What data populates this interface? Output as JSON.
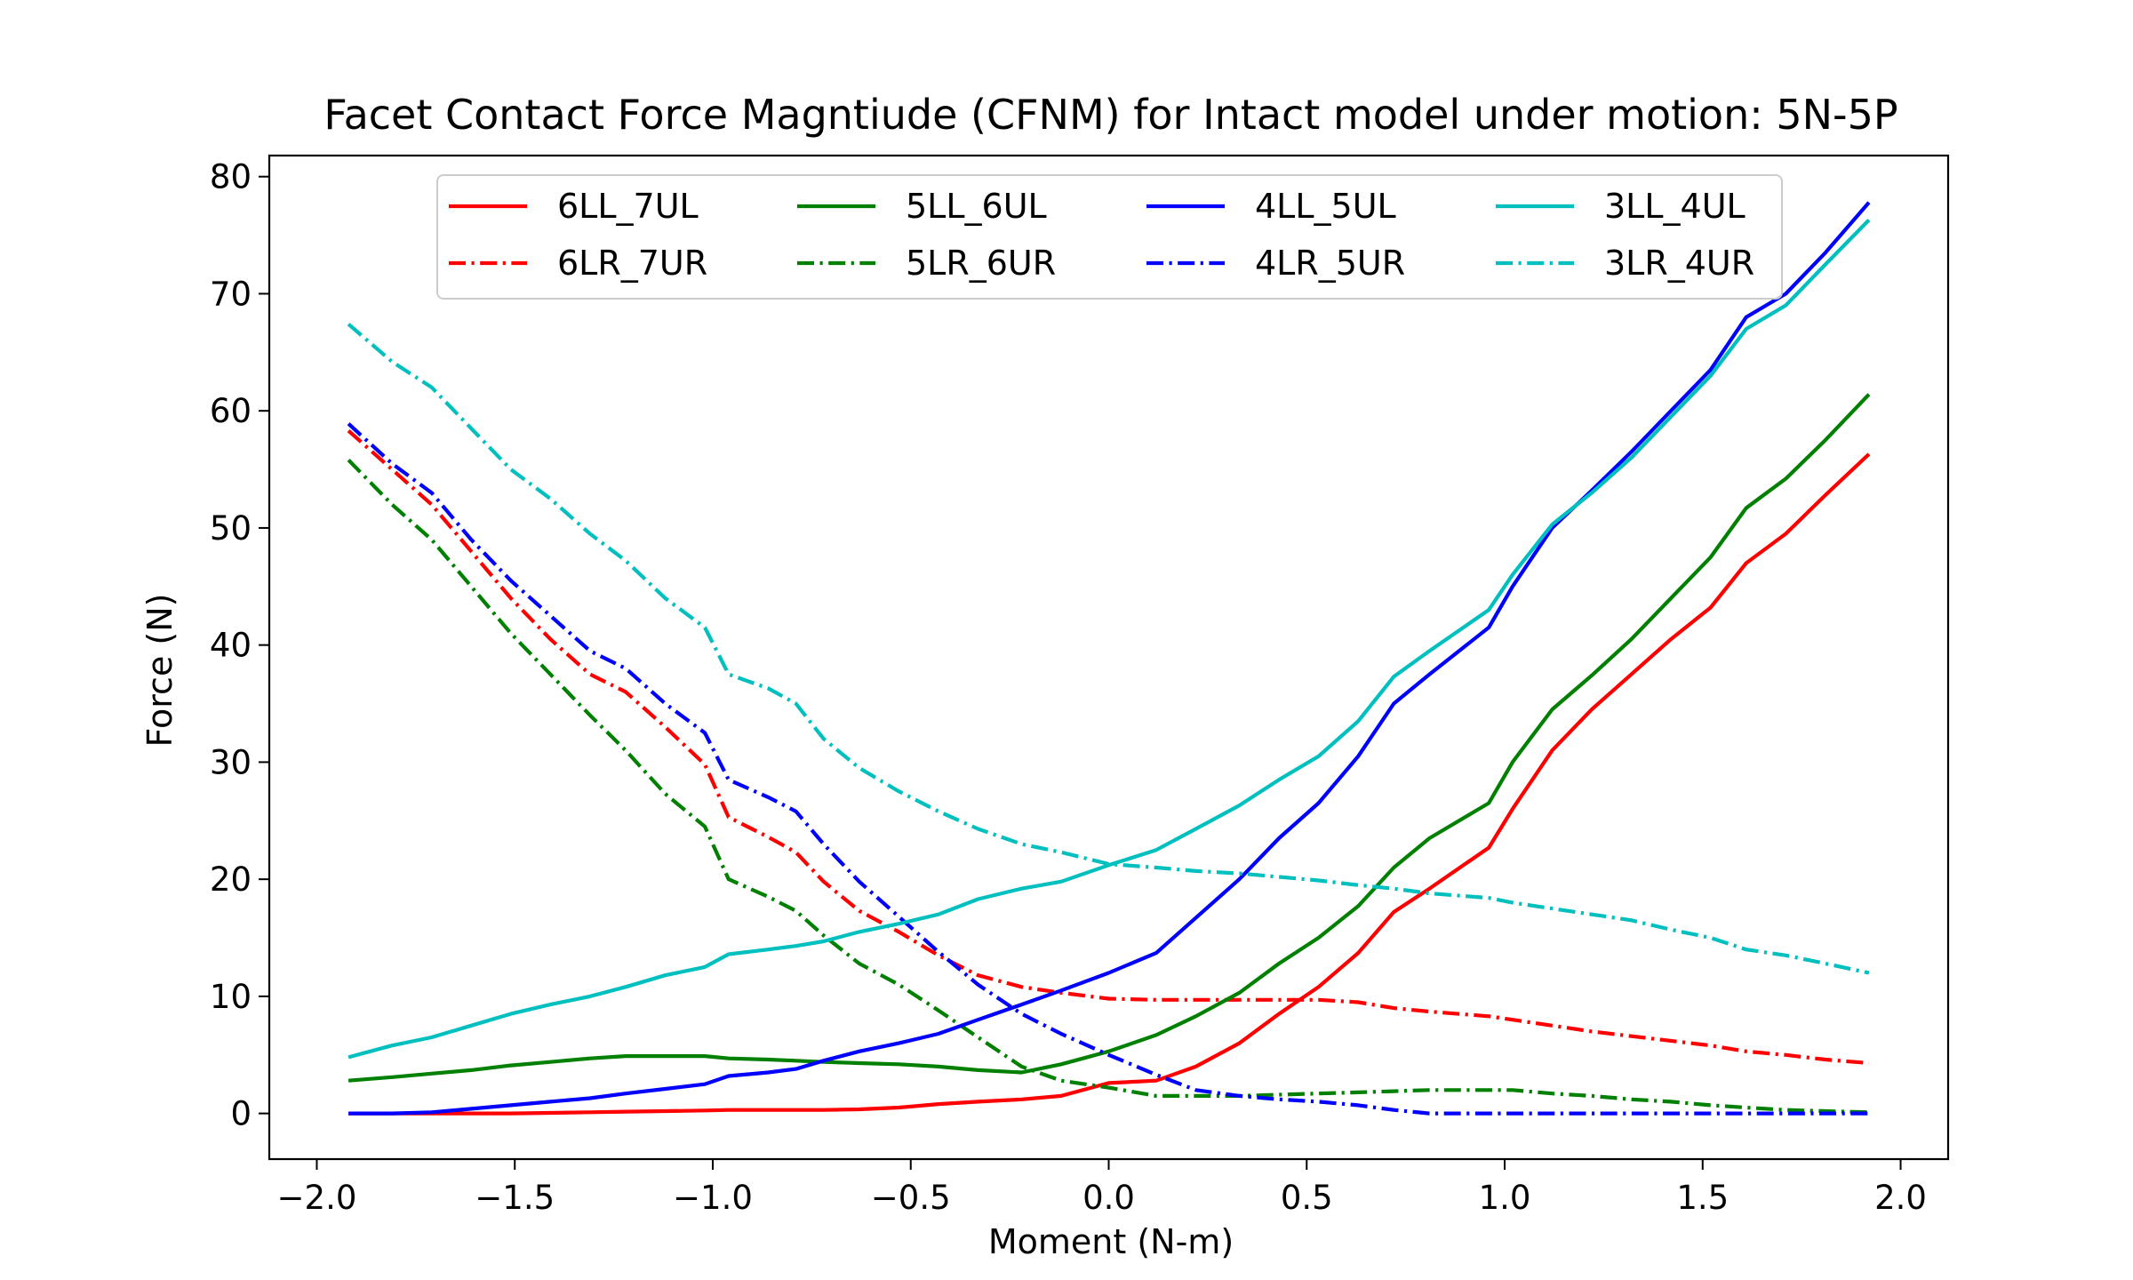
{
  "chart_data": {
    "type": "line",
    "title": "Facet Contact Force Magntiude (CFNM) for Intact model under motion: 5N-5P",
    "xlabel": "Moment (N-m)",
    "ylabel": "Force (N)",
    "xlim": [
      -2.12,
      2.12
    ],
    "ylim": [
      -3.9,
      81.8
    ],
    "xticks": [
      -2.0,
      -1.5,
      -1.0,
      -0.5,
      0.0,
      0.5,
      1.0,
      1.5,
      2.0
    ],
    "xtick_labels": [
      "−2.0",
      "−1.5",
      "−1.0",
      "−0.5",
      "0.0",
      "0.5",
      "1.0",
      "1.5",
      "2.0"
    ],
    "yticks": [
      0,
      10,
      20,
      30,
      40,
      50,
      60,
      70,
      80
    ],
    "ytick_labels": [
      "0",
      "10",
      "20",
      "30",
      "40",
      "50",
      "60",
      "70",
      "80"
    ],
    "grid": false,
    "legend_position": "upper center",
    "legend_columns": 4,
    "x": [
      -1.92,
      -1.81,
      -1.71,
      -1.61,
      -1.51,
      -1.41,
      -1.31,
      -1.22,
      -1.12,
      -1.02,
      -0.96,
      -0.86,
      -0.79,
      -0.72,
      -0.63,
      -0.53,
      -0.43,
      -0.33,
      -0.22,
      -0.12,
      0.0,
      0.12,
      0.22,
      0.33,
      0.43,
      0.53,
      0.63,
      0.72,
      0.81,
      0.96,
      1.02,
      1.12,
      1.22,
      1.32,
      1.42,
      1.52,
      1.61,
      1.71,
      1.81,
      1.92
    ],
    "series": [
      {
        "name": "6LL_7UL",
        "color": "#ff0000",
        "dash": "solid",
        "values": [
          0,
          0,
          0,
          0,
          0,
          0.05,
          0.1,
          0.15,
          0.2,
          0.25,
          0.3,
          0.3,
          0.3,
          0.3,
          0.35,
          0.5,
          0.8,
          1.0,
          1.2,
          1.5,
          2.6,
          2.8,
          4.0,
          6.0,
          8.5,
          10.8,
          13.7,
          17.2,
          19.2,
          22.7,
          26.0,
          31.0,
          34.5,
          37.5,
          40.5,
          43.2,
          47.0,
          49.5,
          52.8,
          56.3
        ]
      },
      {
        "name": "6LR_7UR",
        "color": "#ff0000",
        "dash": "dashdot",
        "values": [
          58.3,
          55.0,
          52.0,
          48.0,
          44.0,
          40.5,
          37.5,
          36.0,
          33.0,
          29.8,
          25.3,
          23.6,
          22.3,
          19.8,
          17.3,
          15.5,
          13.5,
          11.8,
          10.8,
          10.3,
          9.8,
          9.7,
          9.7,
          9.7,
          9.7,
          9.7,
          9.5,
          9.0,
          8.7,
          8.3,
          8.0,
          7.5,
          7.0,
          6.6,
          6.2,
          5.8,
          5.3,
          5.0,
          4.6,
          4.3
        ]
      },
      {
        "name": "5LL_6UL",
        "color": "#008000",
        "dash": "solid",
        "values": [
          2.8,
          3.1,
          3.4,
          3.7,
          4.1,
          4.4,
          4.7,
          4.9,
          4.9,
          4.9,
          4.7,
          4.6,
          4.5,
          4.4,
          4.3,
          4.2,
          4.0,
          3.7,
          3.5,
          4.2,
          5.3,
          6.7,
          8.3,
          10.3,
          12.8,
          15.0,
          17.7,
          21.0,
          23.5,
          26.5,
          30.0,
          34.5,
          37.4,
          40.5,
          44.0,
          47.5,
          51.7,
          54.2,
          57.5,
          61.4
        ]
      },
      {
        "name": "5LR_6UR",
        "color": "#008000",
        "dash": "dashdot",
        "values": [
          55.8,
          52.0,
          49.0,
          45.0,
          41.0,
          37.5,
          34.0,
          31.0,
          27.3,
          24.5,
          20.0,
          18.5,
          17.3,
          15.2,
          12.8,
          11.0,
          8.8,
          6.5,
          4.0,
          2.8,
          2.2,
          1.5,
          1.5,
          1.5,
          1.6,
          1.7,
          1.8,
          1.9,
          2.0,
          2.0,
          2.0,
          1.7,
          1.5,
          1.2,
          1.0,
          0.7,
          0.5,
          0.3,
          0.2,
          0.1
        ]
      },
      {
        "name": "4LL_5UL",
        "color": "#0000ff",
        "dash": "solid",
        "values": [
          0,
          0,
          0.1,
          0.4,
          0.7,
          1.0,
          1.3,
          1.7,
          2.1,
          2.5,
          3.2,
          3.5,
          3.8,
          4.5,
          5.3,
          6.0,
          6.8,
          8.0,
          9.3,
          10.5,
          12.0,
          13.7,
          16.7,
          20.0,
          23.5,
          26.5,
          30.5,
          35.0,
          37.5,
          41.5,
          45.0,
          50.0,
          53.2,
          56.5,
          60.0,
          63.5,
          68.0,
          70.0,
          73.5,
          77.8
        ]
      },
      {
        "name": "4LR_5UR",
        "color": "#0000ff",
        "dash": "dashdot",
        "values": [
          58.9,
          55.5,
          53.0,
          49.0,
          45.5,
          42.5,
          39.5,
          38.0,
          35.0,
          32.5,
          28.5,
          27.0,
          25.8,
          23.0,
          19.8,
          16.8,
          13.8,
          11.0,
          8.5,
          6.8,
          5.0,
          3.3,
          2.0,
          1.5,
          1.2,
          1.0,
          0.7,
          0.3,
          0,
          0,
          0,
          0,
          0,
          0,
          0,
          0,
          0,
          0,
          0,
          0
        ]
      },
      {
        "name": "3LL_4UL",
        "color": "#00bfbf",
        "dash": "solid",
        "values": [
          4.8,
          5.8,
          6.5,
          7.5,
          8.5,
          9.3,
          10.0,
          10.8,
          11.8,
          12.5,
          13.6,
          14.0,
          14.3,
          14.7,
          15.5,
          16.2,
          17.0,
          18.3,
          19.2,
          19.8,
          21.2,
          22.5,
          24.3,
          26.3,
          28.5,
          30.5,
          33.5,
          37.3,
          39.5,
          43.0,
          46.0,
          50.3,
          53.0,
          56.0,
          59.5,
          63.0,
          67.0,
          69.0,
          72.5,
          76.3
        ]
      },
      {
        "name": "3LR_4UR",
        "color": "#00bfbf",
        "dash": "dashdot",
        "values": [
          67.4,
          64.2,
          62.0,
          58.5,
          55.0,
          52.5,
          49.5,
          47.2,
          44.0,
          41.5,
          37.5,
          36.3,
          35.0,
          32.0,
          29.5,
          27.5,
          25.8,
          24.3,
          23.0,
          22.3,
          21.3,
          21.0,
          20.7,
          20.5,
          20.2,
          19.9,
          19.5,
          19.2,
          18.8,
          18.4,
          18.0,
          17.5,
          17.0,
          16.5,
          15.7,
          15.0,
          14.0,
          13.5,
          12.8,
          12.0
        ]
      }
    ]
  }
}
